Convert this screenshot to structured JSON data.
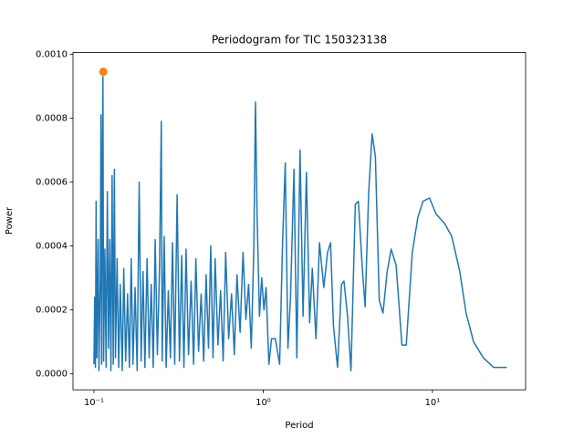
{
  "chart_data": {
    "type": "line",
    "title": "Periodogram for TIC 150323138",
    "x_label": "Period",
    "y_label": "Power",
    "x_scale": "log",
    "xlim": [
      0.0752,
      35.5
    ],
    "ylim": [
      -5e-05,
      0.001005
    ],
    "xticks": [
      {
        "value": 0.1,
        "label": "10⁻¹"
      },
      {
        "value": 1,
        "label": "10⁰"
      },
      {
        "value": 10,
        "label": "10¹"
      }
    ],
    "yticks": [
      {
        "value": 0,
        "label": "0.0000"
      },
      {
        "value": 0.0002,
        "label": "0.0002"
      },
      {
        "value": 0.0004,
        "label": "0.0004"
      },
      {
        "value": 0.0006,
        "label": "0.0006"
      },
      {
        "value": 0.0008,
        "label": "0.0008"
      },
      {
        "value": 0.001,
        "label": "0.0010"
      }
    ],
    "series": [
      {
        "type": "line",
        "color": "#1f77b4",
        "x": [
          0.1,
          0.101,
          0.102,
          0.103,
          0.104,
          0.106,
          0.107,
          0.109,
          0.11,
          0.111,
          0.112,
          0.113,
          0.114,
          0.116,
          0.118,
          0.12,
          0.122,
          0.124,
          0.126,
          0.128,
          0.13,
          0.132,
          0.134,
          0.137,
          0.14,
          0.143,
          0.147,
          0.15,
          0.154,
          0.158,
          0.162,
          0.166,
          0.17,
          0.175,
          0.18,
          0.185,
          0.19,
          0.195,
          0.2,
          0.206,
          0.212,
          0.218,
          0.224,
          0.23,
          0.237,
          0.244,
          0.25,
          0.253,
          0.26,
          0.267,
          0.275,
          0.283,
          0.291,
          0.3,
          0.31,
          0.32,
          0.33,
          0.34,
          0.35,
          0.362,
          0.375,
          0.388,
          0.4,
          0.415,
          0.43,
          0.445,
          0.46,
          0.475,
          0.49,
          0.505,
          0.52,
          0.54,
          0.56,
          0.58,
          0.6,
          0.625,
          0.65,
          0.675,
          0.7,
          0.73,
          0.76,
          0.79,
          0.82,
          0.85,
          0.88,
          0.9,
          0.92,
          0.95,
          0.98,
          1.01,
          1.04,
          1.08,
          1.12,
          1.18,
          1.25,
          1.3,
          1.35,
          1.4,
          1.45,
          1.52,
          1.58,
          1.65,
          1.72,
          1.8,
          1.88,
          1.95,
          2.05,
          2.15,
          2.28,
          2.4,
          2.5,
          2.6,
          2.75,
          2.9,
          3.0,
          3.15,
          3.3,
          3.5,
          3.65,
          3.85,
          4.0,
          4.2,
          4.4,
          4.6,
          4.85,
          5.1,
          5.4,
          5.7,
          6.1,
          6.6,
          7.0,
          7.6,
          8.2,
          8.8,
          9.6,
          10.5,
          11.8,
          13.0,
          14.5,
          15.8,
          17.5,
          20.0,
          23.0,
          27.5
        ],
        "values": [
          3e-05,
          0.00024,
          2e-05,
          0.00054,
          5e-05,
          0.00042,
          1e-05,
          0.0003,
          0.00081,
          3e-05,
          0.0006,
          0.00093,
          4e-05,
          0.00039,
          2e-05,
          0.00057,
          8e-05,
          0.00042,
          1e-05,
          0.00062,
          3e-05,
          0.00064,
          5e-05,
          0.00036,
          2e-05,
          0.00028,
          1e-05,
          0.00033,
          4e-05,
          0.00025,
          2e-05,
          0.00036,
          3e-05,
          0.00027,
          1e-05,
          0.0006,
          4e-05,
          0.00032,
          2e-05,
          0.00036,
          5e-05,
          0.00028,
          2e-05,
          0.00042,
          6e-05,
          0.00033,
          0.00079,
          4e-05,
          0.00043,
          2e-05,
          0.00026,
          5e-05,
          0.00041,
          3e-05,
          0.00056,
          4e-05,
          0.00037,
          2e-05,
          0.00039,
          6e-05,
          0.00029,
          3e-05,
          0.00036,
          7e-05,
          0.00025,
          4e-05,
          0.00031,
          8e-05,
          0.0004,
          5e-05,
          0.00036,
          9e-05,
          0.00026,
          4e-05,
          0.00038,
          0.00011,
          0.00025,
          6e-05,
          0.00031,
          0.00013,
          0.00038,
          0.00017,
          0.00028,
          8e-05,
          0.00039,
          0.00085,
          0.0005,
          0.00018,
          0.0003,
          0.0002,
          0.00027,
          3e-05,
          0.00011,
          0.00011,
          3e-05,
          0.0004,
          0.00066,
          8e-05,
          0.00024,
          0.00064,
          5e-05,
          0.0007,
          0.00018,
          0.00063,
          0.00016,
          0.00033,
          0.00011,
          0.00041,
          0.00027,
          0.00038,
          0.00041,
          0.00015,
          2e-05,
          0.00028,
          0.00029,
          0.00018,
          1e-05,
          0.00053,
          0.00054,
          0.00033,
          0.00021,
          0.00057,
          0.00075,
          0.00068,
          0.00023,
          0.00019,
          0.00032,
          0.00039,
          0.00034,
          9e-05,
          9e-05,
          0.00038,
          0.00049,
          0.00054,
          0.00055,
          0.0005,
          0.00047,
          0.00043,
          0.00032,
          0.00019,
          0.0001,
          5e-05,
          2e-05,
          2e-05
        ]
      },
      {
        "type": "scatter",
        "color": "#ff7f0e",
        "x": [
          0.1135
        ],
        "values": [
          0.000945
        ]
      }
    ]
  }
}
